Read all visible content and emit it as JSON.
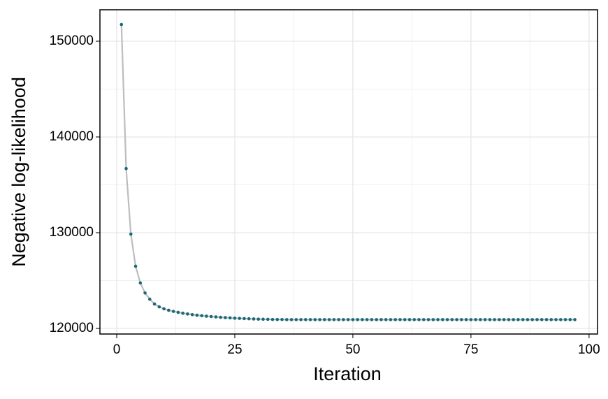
{
  "chart_data": {
    "type": "line",
    "x_label": "Iteration",
    "y_label": "Negative log-likelihood",
    "x": [
      1,
      2,
      3,
      4,
      5,
      6,
      7,
      8,
      9,
      10,
      11,
      12,
      13,
      14,
      15,
      16,
      17,
      18,
      19,
      20,
      21,
      22,
      23,
      24,
      25,
      26,
      27,
      28,
      29,
      30,
      31,
      32,
      33,
      34,
      35,
      36,
      37,
      38,
      39,
      40,
      41,
      42,
      43,
      44,
      45,
      46,
      47,
      48,
      49,
      50,
      51,
      52,
      53,
      54,
      55,
      56,
      57,
      58,
      59,
      60,
      61,
      62,
      63,
      64,
      65,
      66,
      67,
      68,
      69,
      70,
      71,
      72,
      73,
      74,
      75,
      76,
      77,
      78,
      79,
      80,
      81,
      82,
      83,
      84,
      85,
      86,
      87,
      88,
      89,
      90,
      91,
      92,
      93,
      94,
      95,
      96,
      97
    ],
    "values": [
      151750,
      136700,
      129850,
      126500,
      124750,
      123700,
      123050,
      122550,
      122250,
      122050,
      121900,
      121780,
      121680,
      121590,
      121510,
      121440,
      121380,
      121330,
      121280,
      121240,
      121200,
      121160,
      121130,
      121100,
      121070,
      121050,
      121030,
      121010,
      120990,
      120970,
      120960,
      120950,
      120940,
      120935,
      120930,
      120920,
      120920,
      120920,
      120920,
      120920,
      120920,
      120920,
      120920,
      120920,
      120920,
      120920,
      120920,
      120920,
      120920,
      120920,
      120920,
      120920,
      120920,
      120920,
      120920,
      120920,
      120920,
      120920,
      120920,
      120920,
      120920,
      120920,
      120920,
      120920,
      120920,
      120920,
      120920,
      120920,
      120920,
      120920,
      120920,
      120920,
      120920,
      120920,
      120920,
      120920,
      120920,
      120920,
      120920,
      120920,
      120920,
      120920,
      120920,
      120920,
      120920,
      120920,
      120920,
      120920,
      120920,
      120920,
      120920,
      120920,
      120920,
      120920,
      120920,
      120920,
      120920
    ],
    "line_color": "#bdbdbd",
    "point_color": "#1a6878",
    "xlim": [
      -3.55,
      101.8
    ],
    "ylim": [
      119416,
      153285
    ],
    "xticks": [
      0,
      25,
      50,
      75,
      100
    ],
    "yticks": [
      120000,
      130000,
      140000,
      150000
    ],
    "x_minor_grid": [
      12.5,
      37.5,
      62.5,
      87.5
    ],
    "y_minor_grid": [
      125000,
      135000,
      145000
    ],
    "grid": true
  }
}
